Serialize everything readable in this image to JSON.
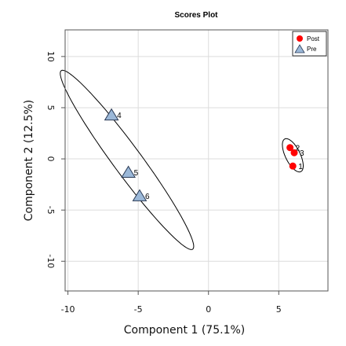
{
  "chart_data": {
    "type": "scatter",
    "title": "Scores Plot",
    "xlabel": "Component 1 (75.1%)",
    "ylabel": "Component 2 (12.5%)",
    "xlim": [
      -10.2,
      8.5
    ],
    "ylim": [
      -12.9,
      12.6
    ],
    "xticks": [
      -10,
      -5,
      0,
      5
    ],
    "yticks": [
      10,
      5,
      0,
      -5,
      -10
    ],
    "xtick_labels": [
      "-10",
      "-5",
      "0",
      "5"
    ],
    "ytick_labels": [
      "10",
      "5",
      "0",
      "-5",
      "-10"
    ],
    "grid": true,
    "legend_position": "top-right",
    "series": [
      {
        "name": "Post",
        "marker": "circle",
        "color": "#ff0000",
        "points": [
          {
            "label": "1",
            "x": 6.0,
            "y": -0.7
          },
          {
            "label": "2",
            "x": 5.8,
            "y": 1.1
          },
          {
            "label": "3",
            "x": 6.1,
            "y": 0.6
          }
        ]
      },
      {
        "name": "Pre",
        "marker": "triangle",
        "color": "#9bb8d8",
        "points": [
          {
            "label": "4",
            "x": -6.9,
            "y": 4.3
          },
          {
            "label": "5",
            "x": -5.7,
            "y": -1.3
          },
          {
            "label": "6",
            "x": -4.9,
            "y": -3.6
          }
        ]
      }
    ],
    "ellipses": [
      {
        "group": "Pre",
        "center": [
          -5.8,
          -0.1
        ],
        "semi_major": 9.9,
        "semi_minor": 1.1,
        "angle_deg": -62
      },
      {
        "group": "Post",
        "center": [
          6.0,
          0.35
        ],
        "semi_major": 1.7,
        "semi_minor": 0.55,
        "angle_deg": -72
      }
    ]
  }
}
